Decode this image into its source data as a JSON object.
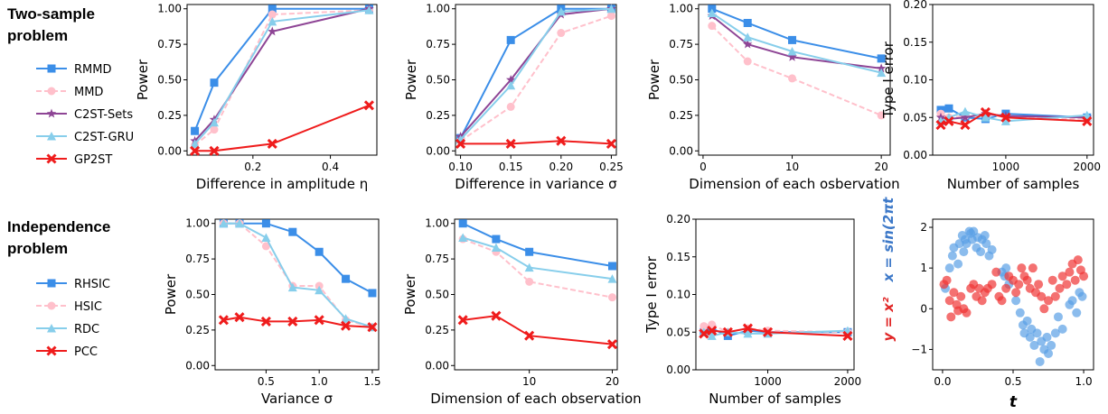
{
  "sections": {
    "top": {
      "line1": "Two-sample",
      "line2": "problem"
    },
    "bottom": {
      "line1": "Independence",
      "line2": "problem"
    }
  },
  "legends": {
    "top": [
      {
        "name": "RMMD",
        "color": "#3b8ee8",
        "marker": "square",
        "dash": false
      },
      {
        "name": "MMD",
        "color": "#ffc0cb",
        "marker": "circle",
        "dash": true
      },
      {
        "name": "C2ST-Sets",
        "color": "#8e4595",
        "marker": "star",
        "dash": false
      },
      {
        "name": "C2ST-GRU",
        "color": "#87ceeb",
        "marker": "triangle",
        "dash": false
      },
      {
        "name": "GP2ST",
        "color": "#ef1c1c",
        "marker": "x",
        "dash": false
      }
    ],
    "bottom": [
      {
        "name": "RHSIC",
        "color": "#3b8ee8",
        "marker": "square",
        "dash": false
      },
      {
        "name": "HSIC",
        "color": "#ffc0cb",
        "marker": "circle",
        "dash": true
      },
      {
        "name": "RDC",
        "color": "#87ceeb",
        "marker": "triangle",
        "dash": false
      },
      {
        "name": "PCC",
        "color": "#ef1c1c",
        "marker": "x",
        "dash": false
      }
    ]
  },
  "chart_data": [
    {
      "type": "line",
      "xlabel": "Difference in amplitude η",
      "ylabel": "Power",
      "xlim": [
        0.03,
        0.52
      ],
      "ylim": [
        -0.03,
        1.03
      ],
      "xticks": [
        0.2,
        0.4
      ],
      "yticks": [
        0.0,
        0.25,
        0.5,
        0.75,
        1.0
      ],
      "xtick_labels": [
        "0.2",
        "0.4"
      ],
      "ytick_labels": [
        "0.00",
        "0.25",
        "0.50",
        "0.75",
        "1.00"
      ],
      "x": [
        0.05,
        0.1,
        0.25,
        0.5
      ],
      "series": [
        {
          "name": "RMMD",
          "values": [
            0.14,
            0.48,
            1.0,
            1.0
          ]
        },
        {
          "name": "MMD",
          "values": [
            0.04,
            0.15,
            0.96,
            0.99
          ]
        },
        {
          "name": "C2ST-Sets",
          "values": [
            0.07,
            0.22,
            0.84,
            1.0
          ]
        },
        {
          "name": "C2ST-GRU",
          "values": [
            0.05,
            0.2,
            0.91,
            0.99
          ]
        },
        {
          "name": "GP2ST",
          "values": [
            0.0,
            0.0,
            0.05,
            0.32
          ]
        }
      ]
    },
    {
      "type": "line",
      "xlabel": "Difference in variance σ",
      "ylabel": "Power",
      "xlim": [
        0.095,
        0.255
      ],
      "ylim": [
        -0.03,
        1.03
      ],
      "xticks": [
        0.1,
        0.15,
        0.2,
        0.25
      ],
      "yticks": [
        0.0,
        0.25,
        0.5,
        0.75,
        1.0
      ],
      "xtick_labels": [
        "0.10",
        "0.15",
        "0.20",
        "0.25"
      ],
      "ytick_labels": [
        "0.00",
        "0.25",
        "0.50",
        "0.75",
        "1.00"
      ],
      "x": [
        0.1,
        0.15,
        0.2,
        0.25
      ],
      "series": [
        {
          "name": "RMMD",
          "values": [
            0.09,
            0.78,
            1.0,
            1.0
          ]
        },
        {
          "name": "MMD",
          "values": [
            0.07,
            0.31,
            0.83,
            0.95
          ]
        },
        {
          "name": "C2ST-Sets",
          "values": [
            0.1,
            0.5,
            0.96,
            1.0
          ]
        },
        {
          "name": "C2ST-GRU",
          "values": [
            0.08,
            0.46,
            0.98,
            1.0
          ]
        },
        {
          "name": "GP2ST",
          "values": [
            0.05,
            0.05,
            0.07,
            0.05
          ]
        }
      ]
    },
    {
      "type": "line",
      "xlabel": "Dimension of each osbervation",
      "ylabel": "Power",
      "xlim": [
        -0.5,
        21.0
      ],
      "ylim": [
        -0.03,
        1.03
      ],
      "xticks": [
        0,
        10,
        20
      ],
      "yticks": [
        0.0,
        0.25,
        0.5,
        0.75,
        1.0
      ],
      "xtick_labels": [
        "0",
        "10",
        "20"
      ],
      "ytick_labels": [
        "0.00",
        "0.25",
        "0.50",
        "0.75",
        "1.00"
      ],
      "x": [
        1,
        5,
        10,
        20
      ],
      "series": [
        {
          "name": "RMMD",
          "values": [
            1.0,
            0.9,
            0.78,
            0.65
          ]
        },
        {
          "name": "MMD",
          "values": [
            0.88,
            0.63,
            0.51,
            0.25
          ]
        },
        {
          "name": "C2ST-Sets",
          "values": [
            0.95,
            0.75,
            0.66,
            0.58
          ]
        },
        {
          "name": "C2ST-GRU",
          "values": [
            0.97,
            0.8,
            0.7,
            0.55
          ]
        }
      ]
    },
    {
      "type": "line",
      "xlabel": "Number of samples",
      "ylabel": "Type I error",
      "xlim": [
        100,
        2080
      ],
      "ylim": [
        0.0,
        0.2
      ],
      "xticks": [
        1000,
        2000
      ],
      "yticks": [
        0.0,
        0.05,
        0.1,
        0.15,
        0.2
      ],
      "xtick_labels": [
        "1000",
        "2000"
      ],
      "ytick_labels": [
        "0.00",
        "0.05",
        "0.10",
        "0.15",
        "0.20"
      ],
      "x": [
        200,
        300,
        500,
        750,
        1000,
        2000
      ],
      "series": [
        {
          "name": "RMMD",
          "values": [
            0.06,
            0.062,
            0.05,
            0.048,
            0.055,
            0.05
          ]
        },
        {
          "name": "MMD",
          "values": [
            0.055,
            0.05,
            0.052,
            0.055,
            0.05,
            0.048
          ]
        },
        {
          "name": "C2ST-Sets",
          "values": [
            0.05,
            0.048,
            0.05,
            0.055,
            0.052,
            0.05
          ]
        },
        {
          "name": "C2ST-GRU",
          "values": [
            0.045,
            0.05,
            0.058,
            0.05,
            0.045,
            0.053
          ]
        },
        {
          "name": "GP2ST",
          "values": [
            0.04,
            0.045,
            0.04,
            0.057,
            0.05,
            0.045
          ]
        }
      ]
    },
    {
      "type": "line",
      "xlabel": "Variance σ",
      "ylabel": "Power",
      "xlim": [
        0.02,
        1.56
      ],
      "ylim": [
        -0.03,
        1.03
      ],
      "xticks": [
        0.5,
        1.0,
        1.5
      ],
      "yticks": [
        0.0,
        0.25,
        0.5,
        0.75,
        1.0
      ],
      "xtick_labels": [
        "0.5",
        "1.0",
        "1.5"
      ],
      "ytick_labels": [
        "0.00",
        "0.25",
        "0.50",
        "0.75",
        "1.00"
      ],
      "x": [
        0.1,
        0.25,
        0.5,
        0.75,
        1.0,
        1.25,
        1.5
      ],
      "series": [
        {
          "name": "RHSIC",
          "values": [
            1.0,
            1.0,
            1.0,
            0.94,
            0.8,
            0.61,
            0.51
          ]
        },
        {
          "name": "HSIC",
          "values": [
            1.0,
            1.0,
            0.84,
            0.56,
            0.56,
            0.32,
            0.27
          ]
        },
        {
          "name": "RDC",
          "values": [
            1.0,
            1.0,
            0.9,
            0.55,
            0.53,
            0.33,
            0.27
          ]
        },
        {
          "name": "PCC",
          "values": [
            0.32,
            0.34,
            0.31,
            0.31,
            0.32,
            0.28,
            0.27
          ]
        }
      ]
    },
    {
      "type": "line",
      "xlabel": "Dimension of each observation",
      "ylabel": "Power",
      "xlim": [
        1.0,
        20.6
      ],
      "ylim": [
        -0.03,
        1.03
      ],
      "xticks": [
        10,
        20
      ],
      "yticks": [
        0.0,
        0.25,
        0.5,
        0.75,
        1.0
      ],
      "xtick_labels": [
        "10",
        "20"
      ],
      "ytick_labels": [
        "0.00",
        "0.25",
        "0.50",
        "0.75",
        "1.00"
      ],
      "x": [
        2,
        6,
        10,
        20
      ],
      "series": [
        {
          "name": "RHSIC",
          "values": [
            1.0,
            0.89,
            0.8,
            0.7
          ]
        },
        {
          "name": "HSIC",
          "values": [
            0.89,
            0.8,
            0.59,
            0.48
          ]
        },
        {
          "name": "RDC",
          "values": [
            0.9,
            0.83,
            0.69,
            0.61
          ]
        },
        {
          "name": "PCC",
          "values": [
            0.32,
            0.35,
            0.21,
            0.15
          ]
        }
      ]
    },
    {
      "type": "line",
      "xlabel": "Number of samples",
      "ylabel": "Type I error",
      "xlim": [
        100,
        2080
      ],
      "ylim": [
        0.0,
        0.2
      ],
      "xticks": [
        1000,
        2000
      ],
      "yticks": [
        0.0,
        0.05,
        0.1,
        0.15,
        0.2
      ],
      "xtick_labels": [
        "1000",
        "2000"
      ],
      "ytick_labels": [
        "0.00",
        "0.05",
        "0.10",
        "0.15",
        "0.20"
      ],
      "x": [
        200,
        300,
        500,
        750,
        1000,
        2000
      ],
      "series": [
        {
          "name": "RHSIC",
          "values": [
            0.05,
            0.055,
            0.045,
            0.052,
            0.05,
            0.05
          ]
        },
        {
          "name": "HSIC",
          "values": [
            0.058,
            0.06,
            0.05,
            0.055,
            0.052,
            0.05
          ]
        },
        {
          "name": "RDC",
          "values": [
            0.05,
            0.045,
            0.05,
            0.048,
            0.048,
            0.052
          ]
        },
        {
          "name": "PCC",
          "values": [
            0.048,
            0.052,
            0.05,
            0.055,
            0.05,
            0.045
          ]
        }
      ]
    },
    {
      "type": "scatter",
      "xlabel": "t",
      "ylabel_blue": "x = sin(2πt",
      "ylabel_red": "y = x²",
      "xlim": [
        -0.07,
        1.07
      ],
      "ylim": [
        -1.5,
        2.2
      ],
      "xticks": [
        0.0,
        0.5,
        1.0
      ],
      "yticks": [
        -1,
        0,
        1,
        2
      ],
      "xtick_labels": [
        "0.0",
        "0.5",
        "1.0"
      ],
      "ytick_labels": [
        "−1",
        "0",
        "1",
        "2"
      ],
      "series": [
        {
          "name": "x = sin(2πt",
          "color": "#5aa0e6",
          "x": [
            0.02,
            0.05,
            0.07,
            0.08,
            0.11,
            0.12,
            0.14,
            0.15,
            0.16,
            0.17,
            0.19,
            0.2,
            0.21,
            0.22,
            0.24,
            0.25,
            0.27,
            0.28,
            0.3,
            0.31,
            0.33,
            0.35,
            0.42,
            0.44,
            0.45,
            0.47,
            0.52,
            0.55,
            0.57,
            0.58,
            0.6,
            0.62,
            0.63,
            0.65,
            0.67,
            0.69,
            0.7,
            0.72,
            0.74,
            0.75,
            0.77,
            0.8,
            0.82,
            0.85,
            0.9,
            0.92,
            0.95,
            0.97,
            0.99
          ],
          "y": [
            0.5,
            1.0,
            1.3,
            1.5,
            1.1,
            1.6,
            1.8,
            1.4,
            1.7,
            1.6,
            1.9,
            1.85,
            1.7,
            1.9,
            1.5,
            1.75,
            1.4,
            1.7,
            1.8,
            1.6,
            1.3,
            1.45,
            0.9,
            0.8,
            1.0,
            0.6,
            0.2,
            -0.1,
            -0.4,
            -0.6,
            -0.3,
            -0.7,
            -0.5,
            -0.9,
            -0.6,
            -1.3,
            -0.8,
            -1.0,
            -0.7,
            -1.1,
            -0.9,
            -0.6,
            -0.2,
            -0.5,
            0.1,
            0.2,
            -0.1,
            0.4,
            0.3
          ]
        },
        {
          "name": "y = x²",
          "color": "#ef3434",
          "x": [
            0.01,
            0.03,
            0.05,
            0.06,
            0.08,
            0.1,
            0.11,
            0.13,
            0.15,
            0.17,
            0.2,
            0.22,
            0.24,
            0.26,
            0.28,
            0.3,
            0.32,
            0.35,
            0.38,
            0.4,
            0.42,
            0.45,
            0.47,
            0.5,
            0.52,
            0.54,
            0.56,
            0.58,
            0.6,
            0.62,
            0.64,
            0.66,
            0.68,
            0.7,
            0.72,
            0.75,
            0.78,
            0.8,
            0.83,
            0.85,
            0.88,
            0.9,
            0.92,
            0.94,
            0.96,
            0.98,
            1.0
          ],
          "y": [
            0.6,
            0.7,
            0.2,
            -0.2,
            0.4,
            0.1,
            -0.05,
            0.3,
            0.0,
            -0.1,
            0.5,
            0.6,
            0.3,
            0.5,
            0.2,
            0.4,
            0.5,
            0.6,
            0.9,
            0.3,
            0.2,
            0.5,
            0.8,
            0.7,
            0.4,
            0.6,
            1.0,
            0.8,
            0.7,
            0.5,
            1.0,
            0.4,
            0.6,
            0.3,
            0.0,
            0.2,
            0.7,
            0.3,
            0.5,
            0.8,
            0.6,
            0.9,
            1.1,
            0.7,
            1.2,
            0.95,
            0.8
          ]
        }
      ]
    }
  ]
}
